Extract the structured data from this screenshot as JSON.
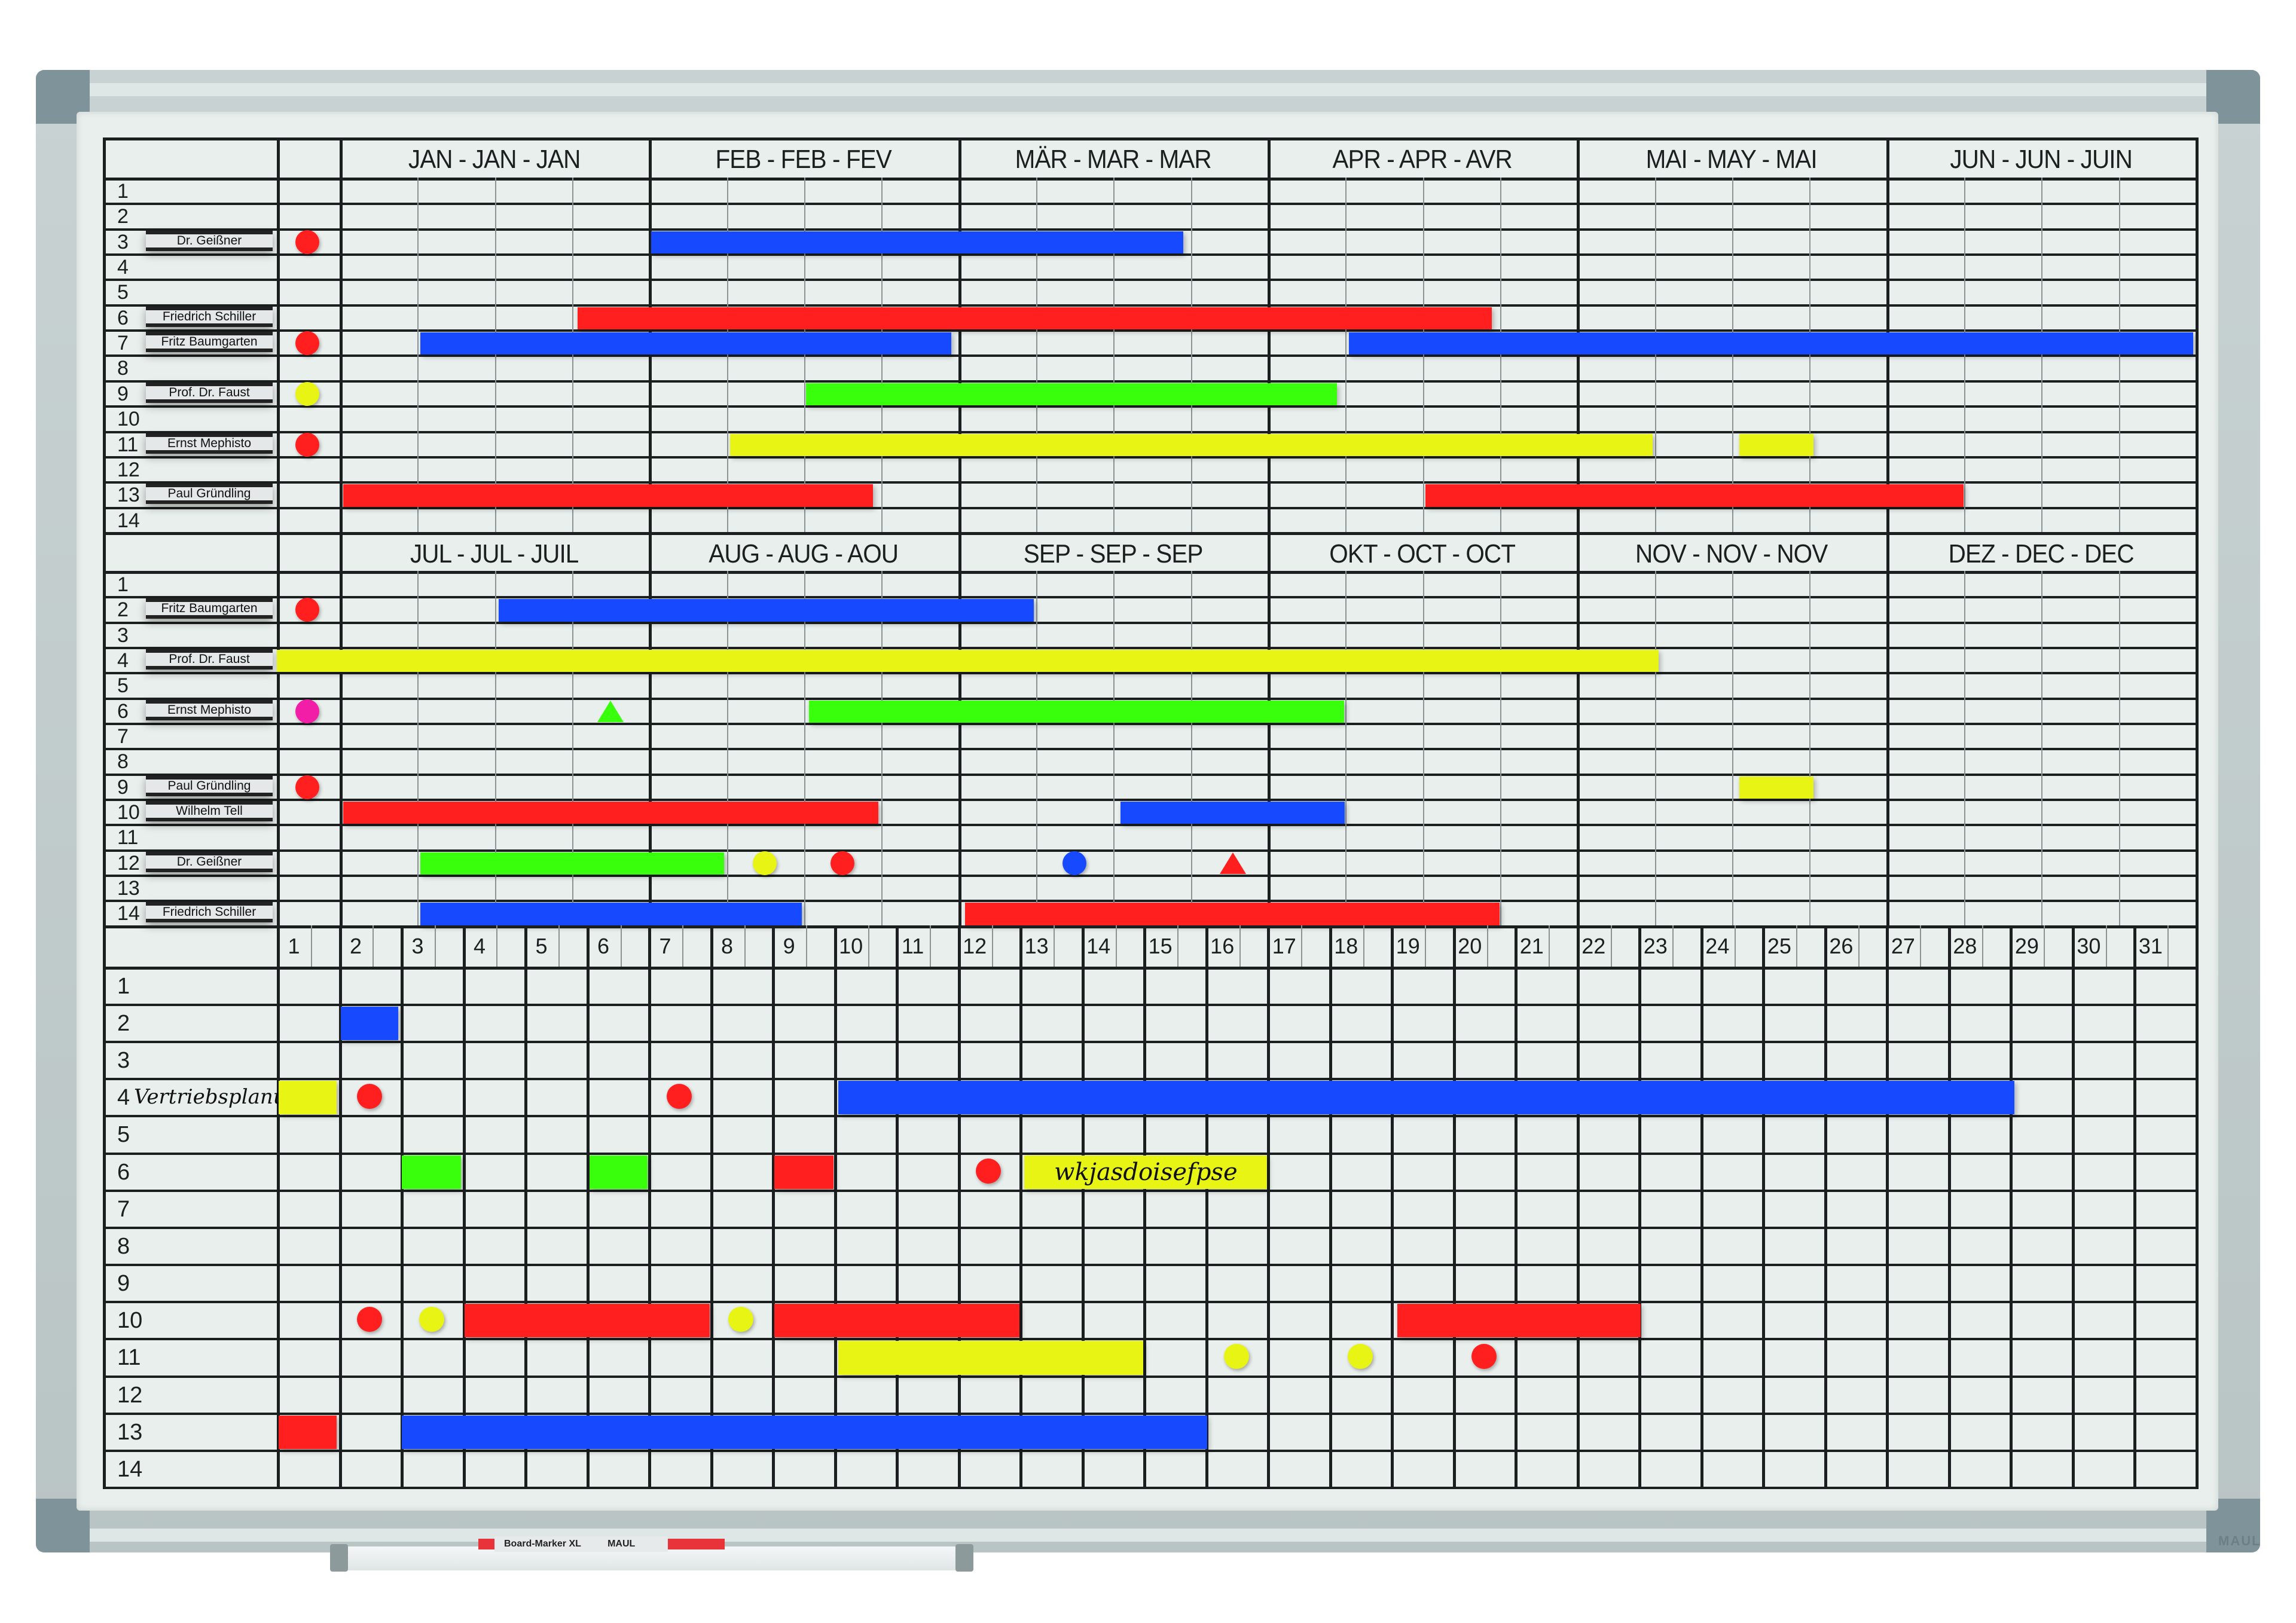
{
  "board": {
    "brand": "MAUL",
    "marker_label": "Board-Marker XL",
    "marker_brand": "MAUL",
    "colors": {
      "red": "#ff1f1f",
      "blue": "#1749ff",
      "green": "#39ff0d",
      "yellow": "#e8f414",
      "magenta": "#f21ea8",
      "line": "#1b1f1f",
      "surface": "#e9efed",
      "frame": "#c3cdcd"
    }
  },
  "top_section": {
    "months": [
      "JAN - JAN - JAN",
      "FEB - FEB - FEV",
      "MÄR - MAR - MAR",
      "APR - APR - AVR",
      "MAI - MAY - MAI",
      "JUN - JUN - JUIN"
    ],
    "rows": [
      "1",
      "2",
      "3",
      "4",
      "5",
      "6",
      "7",
      "8",
      "9",
      "10",
      "11",
      "12",
      "13",
      "14"
    ],
    "name_tags": [
      {
        "row": 3,
        "name": "Dr. Geißner"
      },
      {
        "row": 6,
        "name": "Friedrich Schiller"
      },
      {
        "row": 7,
        "name": "Fritz Baumgarten"
      },
      {
        "row": 9,
        "name": "Prof. Dr. Faust"
      },
      {
        "row": 11,
        "name": "Ernst Mephisto"
      },
      {
        "row": 13,
        "name": "Paul Gründling"
      }
    ],
    "bars": [
      {
        "row": 3,
        "from": 4.03,
        "to": 10.91,
        "color": "blue"
      },
      {
        "row": 6,
        "from": 3.08,
        "to": 14.9,
        "color": "red"
      },
      {
        "row": 7,
        "from": 1.04,
        "to": 7.91,
        "color": "blue"
      },
      {
        "row": 7,
        "from": 13.05,
        "to": 23.97,
        "color": "blue"
      },
      {
        "row": 9,
        "from": 6.03,
        "to": 12.9,
        "color": "green"
      },
      {
        "row": 11,
        "from": 5.05,
        "to": 16.98,
        "color": "yellow"
      },
      {
        "row": 11,
        "from": 18.1,
        "to": 19.06,
        "color": "yellow"
      },
      {
        "row": 13,
        "from": 0.05,
        "to": 6.9,
        "color": "red"
      },
      {
        "row": 13,
        "from": 14.04,
        "to": 21.0,
        "color": "red"
      }
    ],
    "markers": [
      {
        "row": 3,
        "at": -0.42,
        "shape": "dot",
        "color": "red"
      },
      {
        "row": 7,
        "at": -0.42,
        "shape": "dot",
        "color": "red"
      },
      {
        "row": 9,
        "at": -0.42,
        "shape": "dot",
        "color": "yellow"
      },
      {
        "row": 11,
        "at": -0.42,
        "shape": "dot",
        "color": "red"
      }
    ]
  },
  "second_section": {
    "months": [
      "JUL - JUL - JUIL",
      "AUG - AUG - AOU",
      "SEP - SEP - SEP",
      "OKT - OCT - OCT",
      "NOV - NOV - NOV",
      "DEZ - DEC - DEC"
    ],
    "rows": [
      "1",
      "2",
      "3",
      "4",
      "5",
      "6",
      "7",
      "8",
      "9",
      "10",
      "11",
      "12",
      "13",
      "14"
    ],
    "name_tags": [
      {
        "row": 2,
        "name": "Fritz Baumgarten"
      },
      {
        "row": 4,
        "name": "Prof. Dr. Faust"
      },
      {
        "row": 6,
        "name": "Ernst Mephisto"
      },
      {
        "row": 9,
        "name": "Paul Gründling"
      },
      {
        "row": 10,
        "name": "Wilhelm Tell"
      },
      {
        "row": 12,
        "name": "Dr. Geißner"
      },
      {
        "row": 14,
        "name": "Friedrich Schiller"
      }
    ],
    "bars": [
      {
        "row": 2,
        "from": 2.06,
        "to": 8.98,
        "color": "blue"
      },
      {
        "row": 4,
        "from": -0.81,
        "to": 17.06,
        "color": "yellow"
      },
      {
        "row": 6,
        "from": 6.07,
        "to": 12.99,
        "color": "green"
      },
      {
        "row": 9,
        "from": 18.1,
        "to": 19.06,
        "color": "yellow"
      },
      {
        "row": 10,
        "from": 0.05,
        "to": 6.97,
        "color": "red"
      },
      {
        "row": 10,
        "from": 10.1,
        "to": 13.0,
        "color": "blue"
      },
      {
        "row": 12,
        "from": 1.04,
        "to": 4.97,
        "color": "green"
      },
      {
        "row": 14,
        "from": 1.04,
        "to": 5.98,
        "color": "blue"
      },
      {
        "row": 14,
        "from": 8.09,
        "to": 15.0,
        "color": "red"
      }
    ],
    "markers": [
      {
        "row": 2,
        "at": -0.42,
        "shape": "dot",
        "color": "red"
      },
      {
        "row": 6,
        "at": -0.42,
        "shape": "dot",
        "color": "magenta"
      },
      {
        "row": 6,
        "at": 3.5,
        "shape": "triangle",
        "color": "green"
      },
      {
        "row": 9,
        "at": -0.42,
        "shape": "dot",
        "color": "red"
      },
      {
        "row": 12,
        "at": 5.5,
        "shape": "dot",
        "color": "yellow"
      },
      {
        "row": 12,
        "at": 6.5,
        "shape": "dot",
        "color": "red"
      },
      {
        "row": 12,
        "at": 9.5,
        "shape": "dot",
        "color": "blue"
      },
      {
        "row": 12,
        "at": 11.55,
        "shape": "triangle",
        "color": "red"
      }
    ]
  },
  "day_section": {
    "days": [
      "1",
      "2",
      "3",
      "4",
      "5",
      "6",
      "7",
      "8",
      "9",
      "10",
      "11",
      "12",
      "13",
      "14",
      "15",
      "16",
      "17",
      "18",
      "19",
      "20",
      "21",
      "22",
      "23",
      "24",
      "25",
      "26",
      "27",
      "28",
      "29",
      "30",
      "31"
    ],
    "rows": [
      "1",
      "2",
      "3",
      "4",
      "5",
      "6",
      "7",
      "8",
      "9",
      "10",
      "11",
      "12",
      "13",
      "14"
    ],
    "row_labels": [
      {
        "row": 4,
        "text": "Vertriebsplanung"
      }
    ],
    "bars": [
      {
        "row": 2,
        "from": 1.03,
        "to": 1.96,
        "color": "blue"
      },
      {
        "row": 4,
        "from": 0.03,
        "to": 0.97,
        "color": "yellow"
      },
      {
        "row": 4,
        "from": 9.07,
        "to": 28.07,
        "color": "blue"
      },
      {
        "row": 6,
        "from": 2.02,
        "to": 2.98,
        "color": "green"
      },
      {
        "row": 6,
        "from": 5.05,
        "to": 5.99,
        "color": "green"
      },
      {
        "row": 6,
        "from": 8.04,
        "to": 8.99,
        "color": "red"
      },
      {
        "row": 6,
        "from": 12.08,
        "to": 16.0,
        "color": "yellow",
        "text": "wkjasdoisefpse"
      },
      {
        "row": 10,
        "from": 3.03,
        "to": 6.99,
        "color": "red"
      },
      {
        "row": 10,
        "from": 8.04,
        "to": 12.0,
        "color": "red"
      },
      {
        "row": 10,
        "from": 18.1,
        "to": 22.04,
        "color": "red"
      },
      {
        "row": 11,
        "from": 9.07,
        "to": 14.0,
        "color": "yellow"
      },
      {
        "row": 13,
        "from": 0.03,
        "to": 0.97,
        "color": "red"
      },
      {
        "row": 13,
        "from": 2.02,
        "to": 15.03,
        "color": "blue"
      }
    ],
    "markers": [
      {
        "row": 4,
        "at": 1.5,
        "shape": "dot",
        "color": "red"
      },
      {
        "row": 4,
        "at": 6.5,
        "shape": "dot",
        "color": "red"
      },
      {
        "row": 6,
        "at": 11.5,
        "shape": "dot",
        "color": "red"
      },
      {
        "row": 10,
        "at": 1.5,
        "shape": "dot",
        "color": "red"
      },
      {
        "row": 10,
        "at": 2.5,
        "shape": "dot",
        "color": "yellow"
      },
      {
        "row": 10,
        "at": 7.5,
        "shape": "dot",
        "color": "yellow"
      },
      {
        "row": 11,
        "at": 15.5,
        "shape": "dot",
        "color": "yellow"
      },
      {
        "row": 11,
        "at": 17.5,
        "shape": "dot",
        "color": "yellow"
      },
      {
        "row": 11,
        "at": 19.5,
        "shape": "dot",
        "color": "red"
      }
    ]
  }
}
